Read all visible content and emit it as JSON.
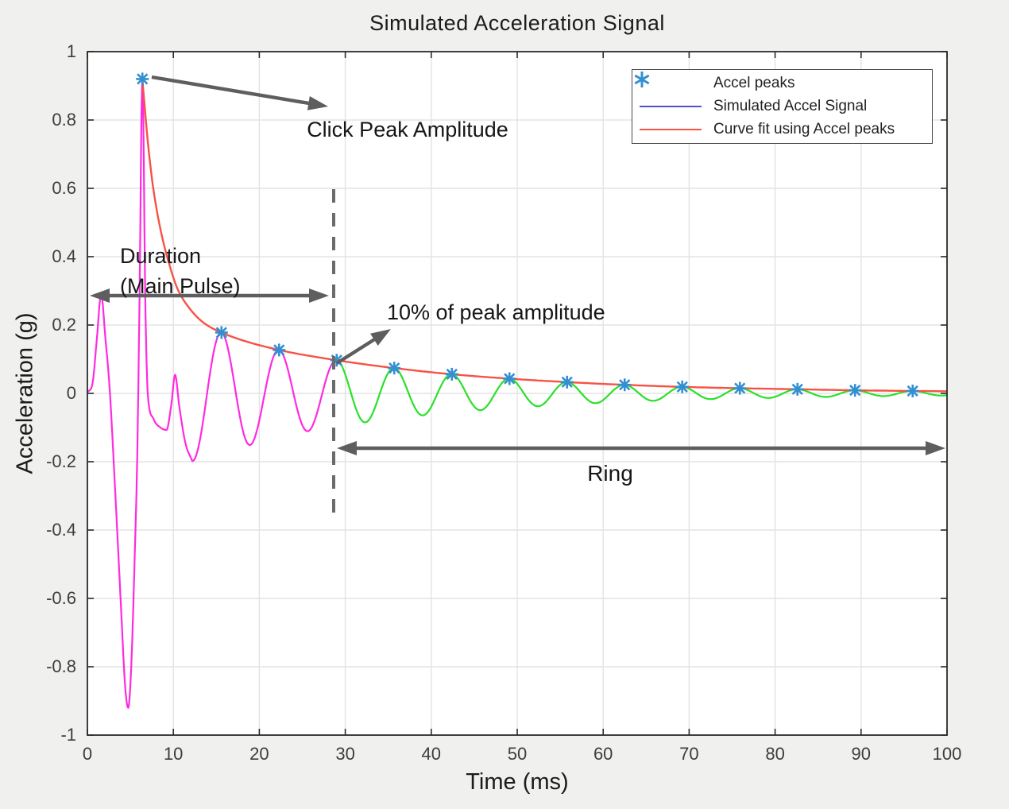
{
  "chart_data": {
    "type": "line",
    "title": "Simulated Acceleration Signal",
    "xlabel": "Time (ms)",
    "ylabel": "Acceleration (g)",
    "xlim": [
      0,
      100
    ],
    "ylim": [
      -1,
      1
    ],
    "grid": true,
    "x_ticks": [
      0,
      10,
      20,
      30,
      40,
      50,
      60,
      70,
      80,
      90,
      100
    ],
    "y_ticks": [
      1,
      0.8,
      0.6,
      0.4,
      0.2,
      0,
      -0.2,
      -0.4,
      -0.6,
      -0.8,
      -1
    ],
    "legend": {
      "position": "top-right",
      "entries": [
        {
          "label": "Accel peaks",
          "marker": "asterisk",
          "color": "#338fd1"
        },
        {
          "label": "Simulated Accel Signal",
          "marker": "line",
          "color": "#5150d0"
        },
        {
          "label": "Curve fit using Accel peaks",
          "marker": "line",
          "color": "#f75245"
        }
      ]
    },
    "series": {
      "colors": {
        "main_pulse": "#ff2ae0",
        "ring": "#2ae02a",
        "fit": "#f75245",
        "peaks": "#338fd1"
      },
      "split_time_ms": 29.0,
      "signal_early_points": [
        [
          0,
          0.003
        ],
        [
          0.6,
          0.03
        ],
        [
          1.1,
          0.16
        ],
        [
          1.6,
          0.29
        ],
        [
          2.1,
          0.16
        ],
        [
          2.6,
          0.01
        ],
        [
          3.2,
          -0.27
        ],
        [
          3.9,
          -0.62
        ],
        [
          4.4,
          -0.86
        ],
        [
          4.75,
          -0.92
        ],
        [
          5.1,
          -0.8
        ],
        [
          5.5,
          -0.48
        ],
        [
          5.8,
          -0.18
        ],
        [
          6.05,
          0.25
        ],
        [
          6.4,
          0.92
        ],
        [
          6.75,
          0.25
        ],
        [
          7.05,
          -0.01
        ],
        [
          7.7,
          -0.075
        ],
        [
          8.5,
          -0.1
        ],
        [
          9.2,
          -0.107
        ],
        [
          9.75,
          -0.035
        ],
        [
          10.2,
          0.054
        ],
        [
          10.7,
          -0.04
        ],
        [
          11.4,
          -0.145
        ],
        [
          12.2,
          -0.198
        ]
      ],
      "ring": {
        "period_ms": 6.7,
        "phase_peak_ms": 15.6,
        "envelope_points": [
          [
            12.2,
            0.198
          ],
          [
            15.6,
            0.178
          ],
          [
            22.3,
            0.127
          ],
          [
            29.0,
            0.097
          ],
          [
            35.7,
            0.074
          ],
          [
            42.4,
            0.056
          ],
          [
            49.1,
            0.043
          ],
          [
            55.8,
            0.033
          ],
          [
            62.5,
            0.025
          ],
          [
            69.2,
            0.019
          ],
          [
            75.9,
            0.015
          ],
          [
            82.6,
            0.012
          ],
          [
            89.3,
            0.009
          ],
          [
            96.0,
            0.007
          ],
          [
            100,
            0.0062
          ]
        ]
      },
      "fit_points": [
        [
          6.4,
          0.92
        ],
        [
          7.5,
          0.63
        ],
        [
          8.5,
          0.48
        ],
        [
          9.5,
          0.38
        ],
        [
          10.5,
          0.305
        ],
        [
          12,
          0.245
        ],
        [
          13.5,
          0.207
        ],
        [
          15.6,
          0.178
        ],
        [
          22.3,
          0.127
        ],
        [
          29.0,
          0.097
        ],
        [
          35.7,
          0.074
        ],
        [
          42.4,
          0.056
        ],
        [
          49.1,
          0.043
        ],
        [
          55.8,
          0.033
        ],
        [
          62.5,
          0.025
        ],
        [
          69.2,
          0.019
        ],
        [
          75.9,
          0.015
        ],
        [
          82.6,
          0.012
        ],
        [
          89.3,
          0.009
        ],
        [
          96.0,
          0.007
        ],
        [
          100,
          0.0062
        ]
      ],
      "peaks": {
        "t": [
          6.4,
          15.6,
          22.3,
          29.0,
          35.7,
          42.4,
          49.1,
          55.8,
          62.5,
          69.2,
          75.9,
          82.6,
          89.3,
          96.0
        ],
        "a": [
          0.92,
          0.178,
          0.127,
          0.097,
          0.074,
          0.056,
          0.043,
          0.033,
          0.025,
          0.019,
          0.015,
          0.012,
          0.009,
          0.007
        ]
      }
    },
    "annotations": {
      "click_peak": {
        "text": "Click Peak Amplitude"
      },
      "duration": {
        "line1": "Duration",
        "line2": "(Main Pulse)"
      },
      "ten_percent": {
        "text": "10% of peak amplitude"
      },
      "ring": {
        "text": "Ring"
      }
    }
  }
}
